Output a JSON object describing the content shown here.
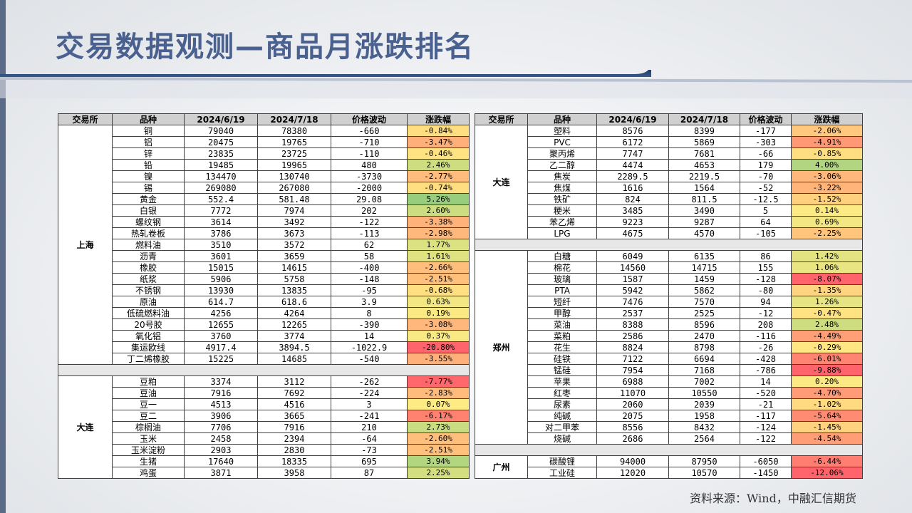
{
  "title": "交易数据观测—商品月涨跌排名",
  "columns": [
    "交易所",
    "品种",
    "2024/6/19",
    "2024/7/18",
    "价格波动",
    "涨跌幅"
  ],
  "left_blocks": [
    {
      "exchange": "上海",
      "rows": [
        [
          "铜",
          "79040",
          "78380",
          "-660",
          "-0.84%"
        ],
        [
          "铝",
          "20475",
          "19765",
          "-710",
          "-3.47%"
        ],
        [
          "锌",
          "23835",
          "23725",
          "-110",
          "-0.46%"
        ],
        [
          "铅",
          "19485",
          "19965",
          "480",
          "2.46%"
        ],
        [
          "镍",
          "134470",
          "130740",
          "-3730",
          "-2.77%"
        ],
        [
          "锡",
          "269080",
          "267080",
          "-2000",
          "-0.74%"
        ],
        [
          "黄金",
          "552.4",
          "581.48",
          "29.08",
          "5.26%"
        ],
        [
          "白银",
          "7772",
          "7974",
          "202",
          "2.60%"
        ],
        [
          "螺纹钢",
          "3614",
          "3492",
          "-122",
          "-3.38%"
        ],
        [
          "热轧卷板",
          "3786",
          "3673",
          "-113",
          "-2.98%"
        ],
        [
          "燃料油",
          "3510",
          "3572",
          "62",
          "1.77%"
        ],
        [
          "沥青",
          "3601",
          "3659",
          "58",
          "1.61%"
        ],
        [
          "橡胶",
          "15015",
          "14615",
          "-400",
          "-2.66%"
        ],
        [
          "纸浆",
          "5906",
          "5758",
          "-148",
          "-2.51%"
        ],
        [
          "不锈钢",
          "13930",
          "13835",
          "-95",
          "-0.68%"
        ],
        [
          "原油",
          "614.7",
          "618.6",
          "3.9",
          "0.63%"
        ],
        [
          "低硫燃料油",
          "4256",
          "4264",
          "8",
          "0.19%"
        ],
        [
          "20号胶",
          "12655",
          "12265",
          "-390",
          "-3.08%"
        ],
        [
          "氧化铝",
          "3760",
          "3774",
          "14",
          "0.37%"
        ],
        [
          "集运欧线",
          "4917.4",
          "3894.5",
          "-1022.9",
          "-20.80%"
        ],
        [
          "丁二烯橡胶",
          "15225",
          "14685",
          "-540",
          "-3.55%"
        ]
      ]
    },
    {
      "exchange": "大连",
      "rows": [
        [
          "豆粕",
          "3374",
          "3112",
          "-262",
          "-7.77%"
        ],
        [
          "豆油",
          "7916",
          "7692",
          "-224",
          "-2.83%"
        ],
        [
          "豆一",
          "4513",
          "4516",
          "3",
          "0.07%"
        ],
        [
          "豆二",
          "3906",
          "3665",
          "-241",
          "-6.17%"
        ],
        [
          "棕榈油",
          "7706",
          "7916",
          "210",
          "2.73%"
        ],
        [
          "玉米",
          "2458",
          "2394",
          "-64",
          "-2.60%"
        ],
        [
          "玉米淀粉",
          "2903",
          "2830",
          "-73",
          "-2.51%"
        ],
        [
          "生猪",
          "17640",
          "18335",
          "695",
          "3.94%"
        ],
        [
          "鸡蛋",
          "3871",
          "3958",
          "87",
          "2.25%"
        ]
      ]
    }
  ],
  "right_blocks": [
    {
      "exchange": "大连",
      "rows": [
        [
          "塑料",
          "8576",
          "8399",
          "-177",
          "-2.06%"
        ],
        [
          "PVC",
          "6172",
          "5869",
          "-303",
          "-4.91%"
        ],
        [
          "聚丙烯",
          "7747",
          "7681",
          "-66",
          "-0.85%"
        ],
        [
          "乙二醇",
          "4474",
          "4653",
          "179",
          "4.00%"
        ],
        [
          "焦炭",
          "2289.5",
          "2219.5",
          "-70",
          "-3.06%"
        ],
        [
          "焦煤",
          "1616",
          "1564",
          "-52",
          "-3.22%"
        ],
        [
          "铁矿",
          "824",
          "811.5",
          "-12.5",
          "-1.52%"
        ],
        [
          "粳米",
          "3485",
          "3490",
          "5",
          "0.14%"
        ],
        [
          "苯乙烯",
          "9223",
          "9287",
          "64",
          "0.69%"
        ],
        [
          "LPG",
          "4675",
          "4570",
          "-105",
          "-2.25%"
        ]
      ]
    },
    {
      "exchange": "郑州",
      "rows": [
        [
          "白糖",
          "6049",
          "6135",
          "86",
          "1.42%"
        ],
        [
          "棉花",
          "14560",
          "14715",
          "155",
          "1.06%"
        ],
        [
          "玻璃",
          "1587",
          "1459",
          "-128",
          "-8.07%"
        ],
        [
          "PTA",
          "5942",
          "5862",
          "-80",
          "-1.35%"
        ],
        [
          "短纤",
          "7476",
          "7570",
          "94",
          "1.26%"
        ],
        [
          "甲醇",
          "2537",
          "2525",
          "-12",
          "-0.47%"
        ],
        [
          "菜油",
          "8388",
          "8596",
          "208",
          "2.48%"
        ],
        [
          "菜粕",
          "2586",
          "2470",
          "-116",
          "-4.49%"
        ],
        [
          "花生",
          "8824",
          "8798",
          "-26",
          "-0.29%"
        ],
        [
          "硅铁",
          "7122",
          "6694",
          "-428",
          "-6.01%"
        ],
        [
          "锰硅",
          "7954",
          "7168",
          "-786",
          "-9.88%"
        ],
        [
          "苹果",
          "6988",
          "7002",
          "14",
          "0.20%"
        ],
        [
          "红枣",
          "11070",
          "10550",
          "-520",
          "-4.70%"
        ],
        [
          "尿素",
          "2060",
          "2039",
          "-21",
          "-1.02%"
        ],
        [
          "纯碱",
          "2075",
          "1958",
          "-117",
          "-5.64%"
        ],
        [
          "对二甲苯",
          "8556",
          "8432",
          "-124",
          "-1.45%"
        ],
        [
          "烧碱",
          "2686",
          "2564",
          "-122",
          "-4.54%"
        ]
      ]
    },
    {
      "exchange": "广州",
      "rows": [
        [
          "碳酸锂",
          "94000",
          "87950",
          "-6050",
          "-6.44%"
        ],
        [
          "工业硅",
          "12020",
          "10570",
          "-1450",
          "-12.06%"
        ]
      ]
    }
  ],
  "source": "资料来源：Wind，中融汇信期货"
}
